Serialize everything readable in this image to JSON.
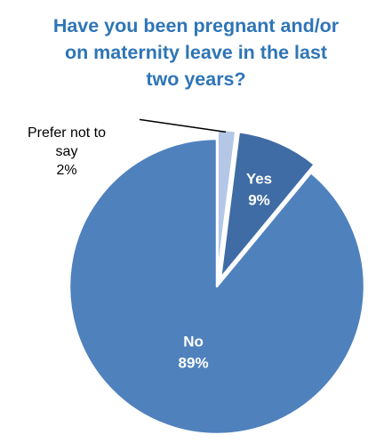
{
  "chart_data": {
    "type": "pie",
    "title_lines": [
      "Have you been pregnant and/or",
      "on maternity leave in the last",
      "two years?"
    ],
    "slices": [
      {
        "label": "Prefer not to say",
        "label_lines": [
          "Prefer not to",
          "say"
        ],
        "value": 2,
        "value_label": "2%",
        "color": "#b4c7e7",
        "exploded": true
      },
      {
        "label": "Yes",
        "label_lines": [
          "Yes"
        ],
        "value": 9,
        "value_label": "9%",
        "color": "#3f6ca4",
        "exploded": true
      },
      {
        "label": "No",
        "label_lines": [
          "No"
        ],
        "value": 89,
        "value_label": "89%",
        "color": "#4f81bd",
        "exploded": false
      }
    ],
    "legend": "none",
    "title_color": "#2e75b6"
  }
}
